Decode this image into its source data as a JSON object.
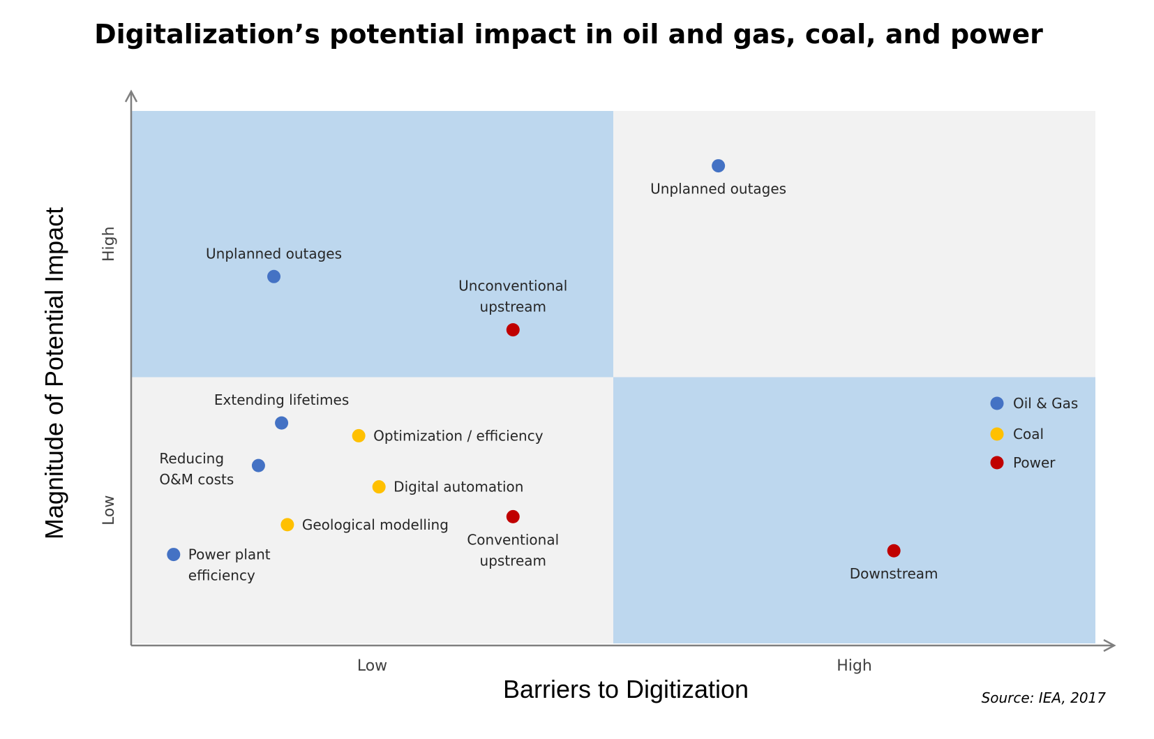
{
  "chart_data": {
    "type": "scatter",
    "title": "Digitalization’s potential impact in oil and gas, coal, and power",
    "xlabel": "Barriers to Digitization",
    "ylabel": "Magnitude of Potential Impact",
    "xlim": [
      0,
      100
    ],
    "ylim": [
      0,
      100
    ],
    "quadrant_split": {
      "x": 50,
      "y": 50
    },
    "quadrant_colors": {
      "top_left": "#BDD7EE",
      "top_right": "#F2F2F2",
      "bottom_left": "#F2F2F2",
      "bottom_right": "#BDD7EE"
    },
    "x_tick_labels": [
      {
        "label": "Low",
        "value": 25
      },
      {
        "label": "High",
        "value": 75
      }
    ],
    "y_tick_labels": [
      {
        "label": "High",
        "value": 75
      },
      {
        "label": "Low",
        "value": 25
      }
    ],
    "series": [
      {
        "name": "Oil & Gas",
        "color": "#4472C4"
      },
      {
        "name": "Coal",
        "color": "#FFC000"
      },
      {
        "name": "Power",
        "color": "#C00000"
      }
    ],
    "points": [
      {
        "series": "Oil & Gas",
        "label": [
          "Unplanned outages"
        ],
        "x": 60.9,
        "y": 89.7,
        "label_pos": "below"
      },
      {
        "series": "Oil & Gas",
        "label": [
          "Unplanned outages"
        ],
        "x": 14.8,
        "y": 68.9,
        "label_pos": "above"
      },
      {
        "series": "Power",
        "label": [
          "Unconventional",
          "upstream"
        ],
        "x": 39.6,
        "y": 58.9,
        "label_pos": "above"
      },
      {
        "series": "Oil & Gas",
        "label": [
          "Extending lifetimes"
        ],
        "x": 15.6,
        "y": 41.4,
        "label_pos": "above"
      },
      {
        "series": "Coal",
        "label": [
          "Optimization / efficiency"
        ],
        "x": 23.6,
        "y": 39.0,
        "label_pos": "right"
      },
      {
        "series": "Oil & Gas",
        "label": [
          "Reducing",
          "O&M costs"
        ],
        "x": 13.2,
        "y": 33.4,
        "label_pos": "left"
      },
      {
        "series": "Coal",
        "label": [
          "Digital automation"
        ],
        "x": 25.7,
        "y": 29.4,
        "label_pos": "right"
      },
      {
        "series": "Coal",
        "label": [
          "Geological modelling"
        ],
        "x": 16.2,
        "y": 22.3,
        "label_pos": "right"
      },
      {
        "series": "Power",
        "label": [
          "Conventional",
          "upstream"
        ],
        "x": 39.6,
        "y": 23.8,
        "label_pos": "below"
      },
      {
        "series": "Oil & Gas",
        "label": [
          "Power plant",
          "efficiency"
        ],
        "x": 4.4,
        "y": 16.7,
        "label_pos": "right"
      },
      {
        "series": "Power",
        "label": [
          "Downstream"
        ],
        "x": 79.1,
        "y": 17.4,
        "label_pos": "below"
      }
    ],
    "legend_position": "right, in lower-right quadrant",
    "source": "Source: IEA, 2017"
  }
}
